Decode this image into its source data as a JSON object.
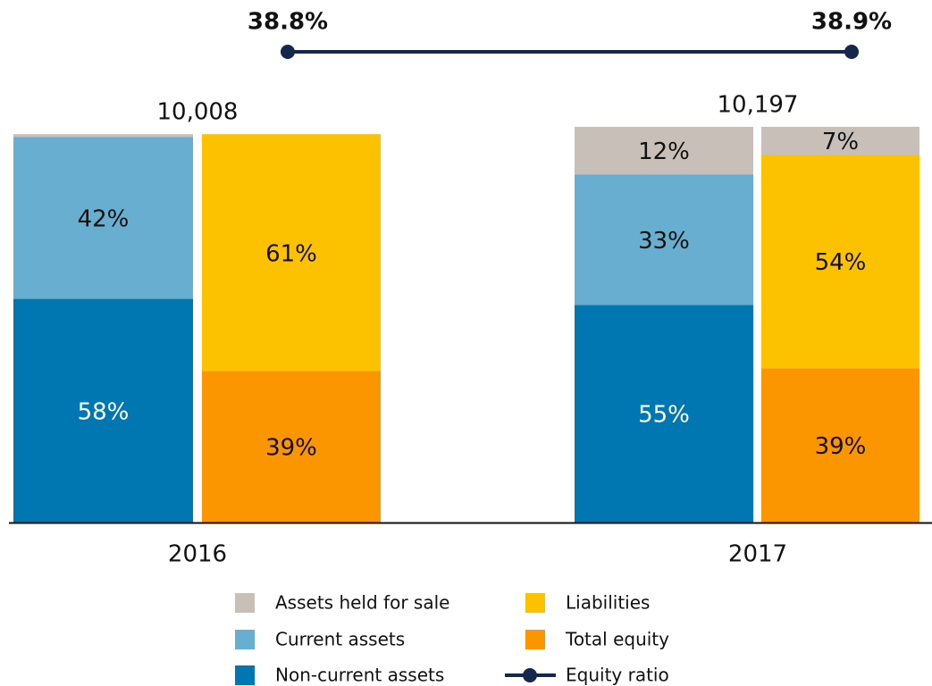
{
  "chart_data": {
    "type": "stacked_bar",
    "categories": [
      "2016",
      "2017"
    ],
    "totals": [
      10008,
      10197
    ],
    "total_labels": [
      "10,008",
      "10,197"
    ],
    "series": [
      {
        "name": "Non-current assets",
        "color": "#0077b0",
        "values": [
          [
            58,
            null
          ],
          [
            55,
            null
          ]
        ],
        "value_labels": [
          [
            "58%",
            null
          ],
          [
            "55%",
            null
          ]
        ]
      },
      {
        "name": "Total equity",
        "color": "#fb9500",
        "values": [
          [
            null,
            39
          ],
          [
            null,
            39
          ]
        ],
        "value_labels": [
          [
            null,
            "39%"
          ],
          [
            null,
            "39%"
          ]
        ]
      },
      {
        "name": "Current assets",
        "color": "#67aed0",
        "values": [
          [
            42,
            null
          ],
          [
            33,
            null
          ]
        ],
        "value_labels": [
          [
            "42%",
            null
          ],
          [
            "33%",
            null
          ]
        ]
      },
      {
        "name": "Liabilities",
        "color": "#fcc200",
        "values": [
          [
            null,
            61
          ],
          [
            null,
            54
          ]
        ],
        "value_labels": [
          [
            null,
            "61%"
          ],
          [
            null,
            "54%"
          ]
        ]
      },
      {
        "name": "Assets held for sale",
        "color": "#c8c0b8",
        "values": [
          [
            0.7,
            null
          ],
          [
            12,
            7
          ]
        ],
        "value_labels": [
          [
            null,
            null
          ],
          [
            "12%",
            "7%"
          ]
        ]
      }
    ],
    "line": {
      "name": "Equity ratio",
      "color": "#13284b",
      "values": [
        38.8,
        38.9
      ],
      "value_labels": [
        "38.8%",
        "38.9%"
      ]
    }
  }
}
